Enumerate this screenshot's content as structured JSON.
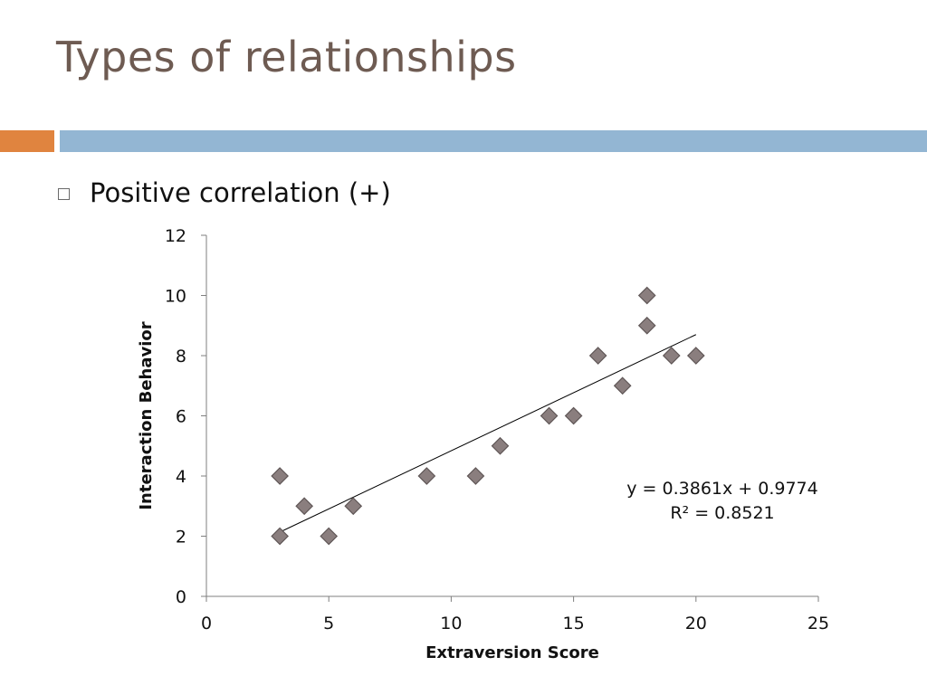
{
  "slide": {
    "title": "Types of relationships",
    "bullet": "Positive correlation (+)"
  },
  "colors": {
    "title": "#6e5b52",
    "accent_bar": "#e0843f",
    "main_bar": "#93b6d3",
    "marker": "#8a7e7e",
    "marker_edge": "#5e5555",
    "trendline": "#000000",
    "axis": "#7f7f7f"
  },
  "icons": {
    "bullet": "hollow-square-bullet-icon"
  },
  "chart_data": {
    "type": "scatter",
    "xlabel": "Extraversion Score",
    "ylabel": "Interaction Behavior",
    "xlim": [
      0,
      25
    ],
    "ylim": [
      0,
      12
    ],
    "xticks": [
      0,
      5,
      10,
      15,
      20,
      25
    ],
    "yticks": [
      0,
      2,
      4,
      6,
      8,
      10,
      12
    ],
    "grid": false,
    "marker": "diamond",
    "points": [
      {
        "x": 3,
        "y": 4
      },
      {
        "x": 3,
        "y": 2
      },
      {
        "x": 4,
        "y": 3
      },
      {
        "x": 5,
        "y": 2
      },
      {
        "x": 6,
        "y": 3
      },
      {
        "x": 9,
        "y": 4
      },
      {
        "x": 11,
        "y": 4
      },
      {
        "x": 12,
        "y": 5
      },
      {
        "x": 14,
        "y": 6
      },
      {
        "x": 15,
        "y": 6
      },
      {
        "x": 16,
        "y": 8
      },
      {
        "x": 17,
        "y": 7
      },
      {
        "x": 18,
        "y": 10
      },
      {
        "x": 18,
        "y": 9
      },
      {
        "x": 19,
        "y": 8
      },
      {
        "x": 20,
        "y": 8
      }
    ],
    "trendline": {
      "type": "linear",
      "slope": 0.3861,
      "intercept": 0.9774,
      "x_range": [
        3,
        20
      ],
      "equation_label": "y = 0.3861x + 0.9774",
      "r2_label": "R² = 0.8521"
    }
  }
}
